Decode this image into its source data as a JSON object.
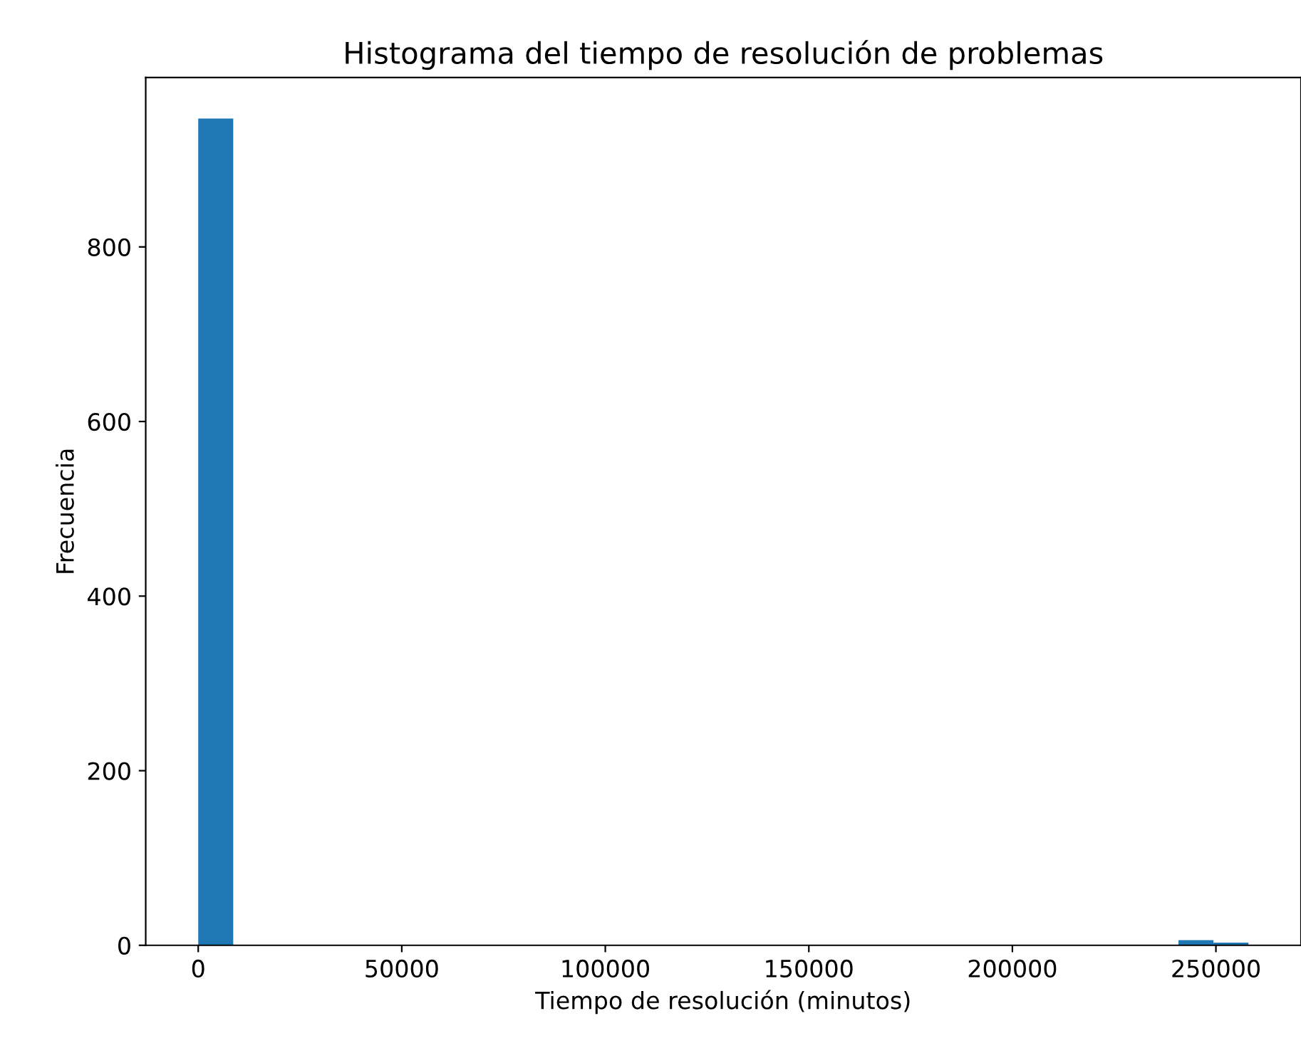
{
  "chart_data": {
    "type": "histogram",
    "title": "Histograma del tiempo de resolución de problemas",
    "xlabel": "Tiempo de resolución (minutos)",
    "ylabel": "Frecuencia",
    "bins": [
      0,
      8600,
      17200,
      25800,
      34400,
      43000,
      51600,
      60200,
      68800,
      77400,
      86000,
      94600,
      103200,
      111800,
      120400,
      129000,
      137600,
      146200,
      154800,
      163400,
      172000,
      180600,
      189200,
      197800,
      206400,
      215000,
      223600,
      232200,
      240800,
      249400,
      258000
    ],
    "values": [
      947,
      0,
      0,
      0,
      0,
      0,
      0,
      0,
      0,
      0,
      0,
      0,
      0,
      0,
      0,
      0,
      0,
      0,
      0,
      0,
      0,
      0,
      0,
      0,
      0,
      0,
      0,
      0,
      6,
      3
    ],
    "color": "#1f77b4",
    "xlim": [
      -12900,
      270900
    ],
    "xticks": [
      0,
      50000,
      100000,
      150000,
      200000,
      250000
    ],
    "ylim": [
      0,
      994
    ],
    "yticks": [
      0,
      200,
      400,
      600,
      800
    ],
    "grid": false
  }
}
